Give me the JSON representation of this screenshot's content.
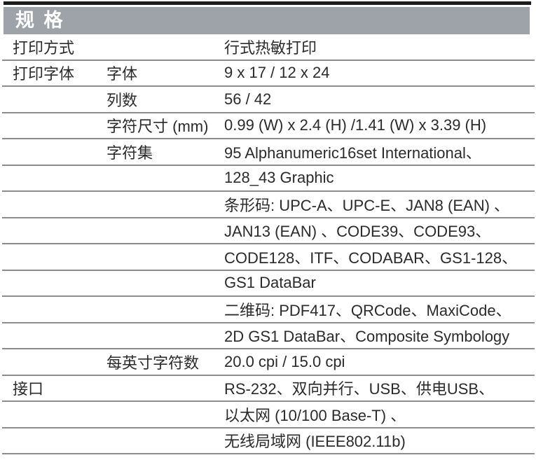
{
  "header": {
    "title": "规 格"
  },
  "colors": {
    "top_bar": "#1c1c1c",
    "header_bg": "#9da3a8",
    "title_text": "#ffffff",
    "rule": "#8d8d8d",
    "text": "#2b2b2b"
  },
  "table": {
    "rows": [
      {
        "c1": "打印方式",
        "c2": "",
        "c3": "行式热敏打印"
      },
      {
        "c1": "打印字体",
        "c2": "字体",
        "c3": "9 x 17 / 12 x 24"
      },
      {
        "c1": "",
        "c2": "列数",
        "c3": "56 / 42"
      },
      {
        "c1": "",
        "c2": "字符尺寸 (mm)",
        "c3": "0.99 (W) x 2.4 (H) /1.41 (W) x 3.39 (H)"
      },
      {
        "c1": "",
        "c2": "字符集",
        "c3": "95 Alphanumeric16set International、"
      },
      {
        "c1": "",
        "c2": "",
        "c3": "128_43 Graphic"
      },
      {
        "c1": "",
        "c2": "",
        "c3": "条形码: UPC-A、UPC-E、JAN8 (EAN) 、"
      },
      {
        "c1": "",
        "c2": "",
        "c3": "JAN13 (EAN) 、CODE39、CODE93、"
      },
      {
        "c1": "",
        "c2": "",
        "c3": "CODE128、ITF、CODABAR、GS1-128、"
      },
      {
        "c1": "",
        "c2": "",
        "c3": "GS1 DataBar"
      },
      {
        "c1": "",
        "c2": "",
        "c3": "二维码: PDF417、QRCode、MaxiCode、"
      },
      {
        "c1": "",
        "c2": "",
        "c3": "2D GS1 DataBar、Composite Symbology"
      },
      {
        "c1": "",
        "c2": "每英寸字符数",
        "c3": "20.0 cpi / 15.0 cpi"
      },
      {
        "c1": "接口",
        "c2": "",
        "c3": "RS-232、双向并行、USB、供电USB、"
      },
      {
        "c1": "",
        "c2": "",
        "c3": "以太网 (10/100 Base-T) 、"
      },
      {
        "c1": "",
        "c2": "",
        "c3": "无线局域网 (IEEE802.11b)"
      }
    ]
  }
}
